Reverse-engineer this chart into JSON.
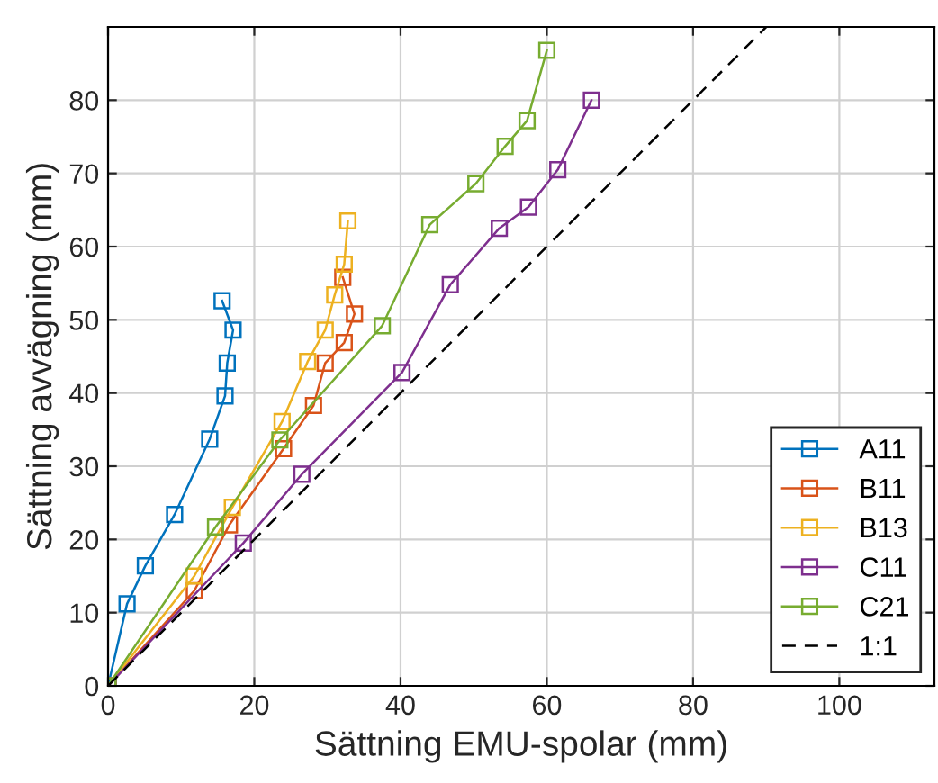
{
  "chart_data": {
    "type": "line",
    "xlabel": "Sättning EMU-spolar (mm)",
    "ylabel": "Sättning avvägning (mm)",
    "xlim": [
      0,
      113
    ],
    "ylim": [
      0,
      90
    ],
    "xticks": [
      0,
      20,
      40,
      60,
      80,
      100
    ],
    "yticks": [
      0,
      10,
      20,
      30,
      40,
      50,
      60,
      70,
      80
    ],
    "grid": true,
    "legend": "bottom right",
    "marker": "square",
    "series": [
      {
        "name": "A11",
        "color": "#0072bd",
        "x": [
          0,
          2.6,
          5.1,
          9.1,
          13.9,
          16.0,
          16.3,
          17.1,
          15.6
        ],
        "values": [
          0,
          11.2,
          16.4,
          23.4,
          33.7,
          39.6,
          44.1,
          48.6,
          52.6
        ]
      },
      {
        "name": "B11",
        "color": "#d95319",
        "x": [
          0,
          11.8,
          16.6,
          24.0,
          28.1,
          29.7,
          32.3,
          33.7,
          32.1
        ],
        "values": [
          0,
          13.0,
          22.0,
          32.4,
          38.3,
          44.1,
          46.9,
          50.8,
          55.8
        ]
      },
      {
        "name": "B13",
        "color": "#edb120",
        "x": [
          0,
          11.8,
          17.0,
          23.8,
          27.3,
          29.7,
          31.0,
          32.3,
          32.8
        ],
        "values": [
          0,
          15.0,
          24.4,
          36.1,
          44.3,
          48.6,
          53.4,
          57.6,
          63.5
        ]
      },
      {
        "name": "C11",
        "color": "#7e2f8e",
        "x": [
          0,
          18.5,
          26.5,
          40.2,
          46.8,
          53.5,
          57.5,
          61.5,
          66.1
        ],
        "values": [
          0,
          19.5,
          28.9,
          42.8,
          54.8,
          62.5,
          65.4,
          70.5,
          80.0
        ]
      },
      {
        "name": "C21",
        "color": "#77ac30",
        "x": [
          0,
          14.7,
          23.5,
          37.5,
          44.0,
          50.3,
          54.3,
          57.3,
          60.0
        ],
        "values": [
          0,
          21.7,
          33.6,
          49.2,
          63.0,
          68.6,
          73.7,
          77.2,
          86.8
        ]
      },
      {
        "name": "1:1",
        "color": "#000000",
        "x": [
          0,
          90
        ],
        "values": [
          0,
          90
        ],
        "line_style": "dashed",
        "marker": "none"
      }
    ]
  }
}
